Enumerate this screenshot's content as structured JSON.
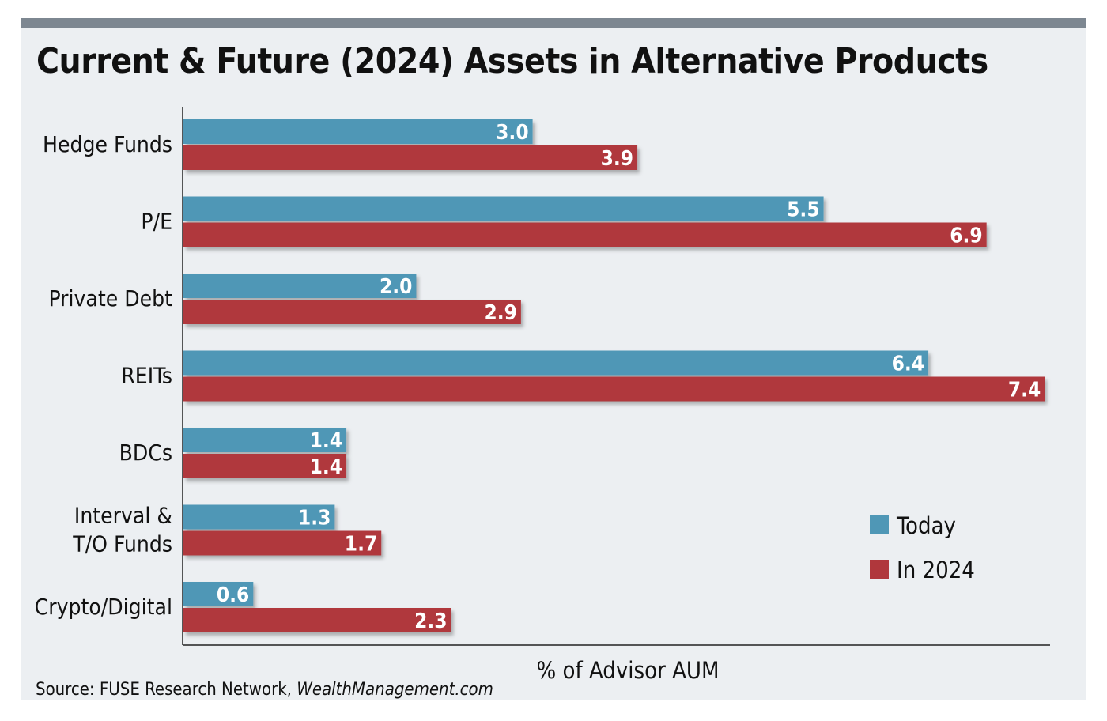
{
  "title": "Current & Future (2024) Assets in Alternative Products",
  "source": {
    "prefix": "Source: FUSE Research Network, ",
    "site": "WealthManagement.com"
  },
  "colors": {
    "today": "#4f97b6",
    "in2024": "#b0373c"
  },
  "chart_data": {
    "type": "bar",
    "orientation": "horizontal",
    "title": "Current & Future (2024) Assets in Alternative Products",
    "xlabel": "% of Advisor AUM",
    "ylabel": "",
    "xlim": [
      0,
      8
    ],
    "grid": false,
    "legend_position": "bottom-right",
    "categories": [
      [
        "Hedge Funds"
      ],
      [
        "P/E"
      ],
      [
        "Private Debt"
      ],
      [
        "REITs"
      ],
      [
        "BDCs"
      ],
      [
        "Interval &",
        "T/O Funds"
      ],
      [
        "Crypto/Digital"
      ]
    ],
    "series": [
      {
        "name": "Today",
        "values": [
          3.0,
          5.5,
          2.0,
          6.4,
          1.4,
          1.3,
          0.6
        ],
        "labels": [
          "3.0",
          "5.5",
          "2.0",
          "6.4",
          "1.4",
          "1.3",
          "0.6"
        ]
      },
      {
        "name": "In 2024",
        "values": [
          3.9,
          6.9,
          2.9,
          7.4,
          1.4,
          1.7,
          2.3
        ],
        "labels": [
          "3.9",
          "6.9",
          "2.9",
          "7.4",
          "1.4",
          "1.7",
          "2.3"
        ]
      }
    ]
  }
}
